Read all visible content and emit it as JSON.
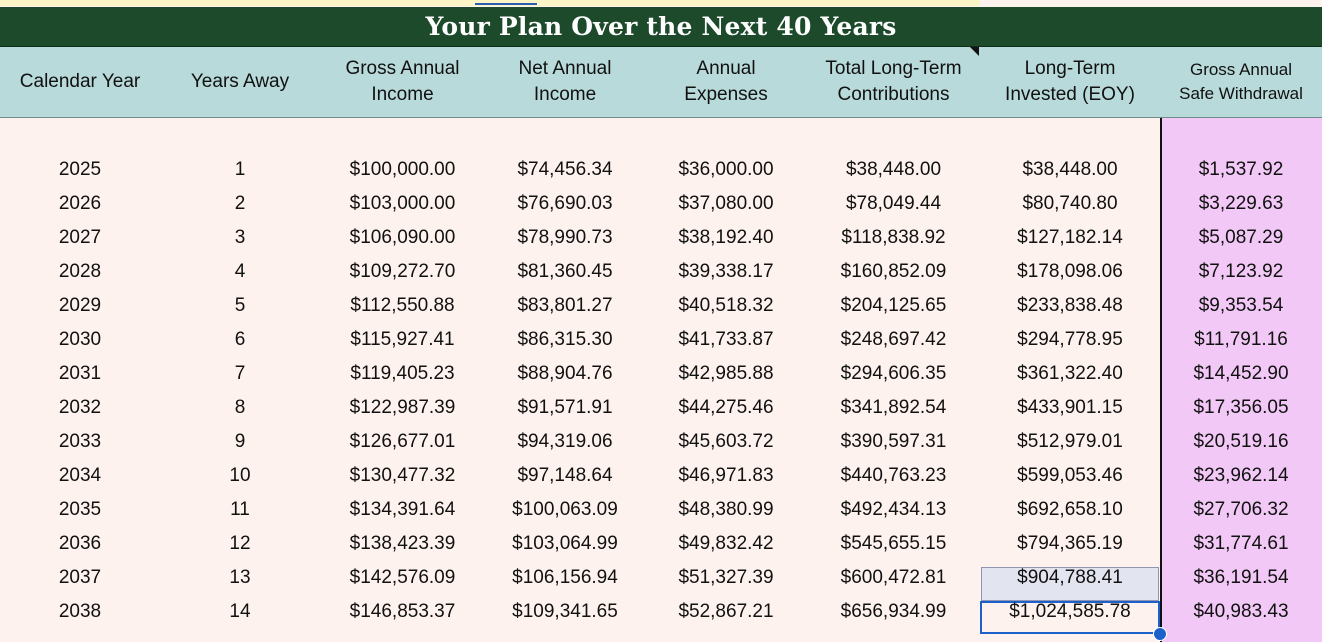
{
  "title": "Your Plan Over the Next 40 Years",
  "colors": {
    "title_bg": "#1c4a2b",
    "header_bg": "#b9dada",
    "body_bg": "#fdf2ee",
    "highlight_col": "#f2c8f6",
    "selection": "#1b61c9"
  },
  "headers": [
    "Calendar Year",
    "Years Away",
    "Gross Annual\nIncome",
    "Net Annual\nIncome",
    "Annual\nExpenses",
    "Total Long-Term\nContributions",
    "Long-Term\nInvested (EOY)",
    "Gross Annual\nSafe Withdrawal"
  ],
  "rows": [
    [
      "2025",
      "1",
      "$100,000.00",
      "$74,456.34",
      "$36,000.00",
      "$38,448.00",
      "$38,448.00",
      "$1,537.92"
    ],
    [
      "2026",
      "2",
      "$103,000.00",
      "$76,690.03",
      "$37,080.00",
      "$78,049.44",
      "$80,740.80",
      "$3,229.63"
    ],
    [
      "2027",
      "3",
      "$106,090.00",
      "$78,990.73",
      "$38,192.40",
      "$118,838.92",
      "$127,182.14",
      "$5,087.29"
    ],
    [
      "2028",
      "4",
      "$109,272.70",
      "$81,360.45",
      "$39,338.17",
      "$160,852.09",
      "$178,098.06",
      "$7,123.92"
    ],
    [
      "2029",
      "5",
      "$112,550.88",
      "$83,801.27",
      "$40,518.32",
      "$204,125.65",
      "$233,838.48",
      "$9,353.54"
    ],
    [
      "2030",
      "6",
      "$115,927.41",
      "$86,315.30",
      "$41,733.87",
      "$248,697.42",
      "$294,778.95",
      "$11,791.16"
    ],
    [
      "2031",
      "7",
      "$119,405.23",
      "$88,904.76",
      "$42,985.88",
      "$294,606.35",
      "$361,322.40",
      "$14,452.90"
    ],
    [
      "2032",
      "8",
      "$122,987.39",
      "$91,571.91",
      "$44,275.46",
      "$341,892.54",
      "$433,901.15",
      "$17,356.05"
    ],
    [
      "2033",
      "9",
      "$126,677.01",
      "$94,319.06",
      "$45,603.72",
      "$390,597.31",
      "$512,979.01",
      "$20,519.16"
    ],
    [
      "2034",
      "10",
      "$130,477.32",
      "$97,148.64",
      "$46,971.83",
      "$440,763.23",
      "$599,053.46",
      "$23,962.14"
    ],
    [
      "2035",
      "11",
      "$134,391.64",
      "$100,063.09",
      "$48,380.99",
      "$492,434.13",
      "$692,658.10",
      "$27,706.32"
    ],
    [
      "2036",
      "12",
      "$138,423.39",
      "$103,064.99",
      "$49,832.42",
      "$545,655.15",
      "$794,365.19",
      "$31,774.61"
    ],
    [
      "2037",
      "13",
      "$142,576.09",
      "$106,156.94",
      "$51,327.39",
      "$600,472.81",
      "$904,788.41",
      "$36,191.54"
    ],
    [
      "2038",
      "14",
      "$146,853.37",
      "$109,341.65",
      "$52,867.21",
      "$656,934.99",
      "$1,024,585.78",
      "$40,983.43"
    ]
  ]
}
